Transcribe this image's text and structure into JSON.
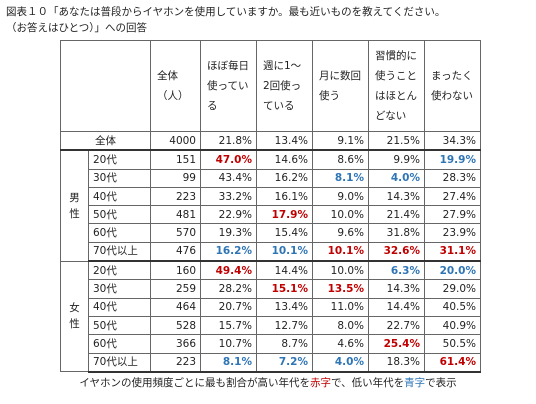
{
  "title": [
    "図表１０「あなたは普段からイヤホンを使用していますか。最も近いものを教えてください。",
    "（お答えはひとつ）」への回答"
  ],
  "table": {
    "headers": [
      "全体（人）",
      "ほぼ毎日使っている",
      "週に1～2回使っている",
      "月に数回使う",
      "習慣的に使うことはほとんどない",
      "まったく使わない"
    ],
    "total": {
      "label": "全体",
      "cells": [
        "4000",
        "21.8%",
        "13.4%",
        "9.1%",
        "21.5%",
        "34.3%"
      ]
    },
    "groups": [
      {
        "label": "男性",
        "rows": [
          {
            "age": "20代",
            "cells": [
              "151",
              "47.0%",
              "14.6%",
              "8.6%",
              "9.9%",
              "19.9%"
            ],
            "colors": [
              null,
              "#c00000",
              null,
              null,
              null,
              "#2e75b6"
            ]
          },
          {
            "age": "30代",
            "cells": [
              "99",
              "43.4%",
              "16.2%",
              "8.1%",
              "4.0%",
              "28.3%"
            ],
            "colors": [
              null,
              null,
              null,
              "#2e75b6",
              "#2e75b6",
              null
            ]
          },
          {
            "age": "40代",
            "cells": [
              "223",
              "33.2%",
              "16.1%",
              "9.0%",
              "14.3%",
              "27.4%"
            ],
            "colors": [
              null,
              null,
              null,
              null,
              null,
              null
            ]
          },
          {
            "age": "50代",
            "cells": [
              "481",
              "22.9%",
              "17.9%",
              "10.0%",
              "21.4%",
              "27.9%"
            ],
            "colors": [
              null,
              null,
              "#c00000",
              null,
              null,
              null
            ]
          },
          {
            "age": "60代",
            "cells": [
              "570",
              "19.3%",
              "15.4%",
              "9.6%",
              "31.8%",
              "23.9%"
            ],
            "colors": [
              null,
              null,
              null,
              null,
              null,
              null
            ]
          },
          {
            "age": "70代以上",
            "cells": [
              "476",
              "16.2%",
              "10.1%",
              "10.1%",
              "32.6%",
              "31.1%"
            ],
            "colors": [
              null,
              "#2e75b6",
              "#2e75b6",
              "#c00000",
              "#c00000",
              "#c00000"
            ]
          }
        ]
      },
      {
        "label": "女性",
        "rows": [
          {
            "age": "20代",
            "cells": [
              "160",
              "49.4%",
              "14.4%",
              "10.0%",
              "6.3%",
              "20.0%"
            ],
            "colors": [
              null,
              "#c00000",
              null,
              null,
              "#2e75b6",
              "#2e75b6"
            ]
          },
          {
            "age": "30代",
            "cells": [
              "259",
              "28.2%",
              "15.1%",
              "13.5%",
              "14.3%",
              "29.0%"
            ],
            "colors": [
              null,
              null,
              "#c00000",
              "#c00000",
              null,
              null
            ]
          },
          {
            "age": "40代",
            "cells": [
              "464",
              "20.7%",
              "13.4%",
              "11.0%",
              "14.4%",
              "40.5%"
            ],
            "colors": [
              null,
              null,
              null,
              null,
              null,
              null
            ]
          },
          {
            "age": "50代",
            "cells": [
              "528",
              "15.7%",
              "12.7%",
              "8.0%",
              "22.7%",
              "40.9%"
            ],
            "colors": [
              null,
              null,
              null,
              null,
              null,
              null
            ]
          },
          {
            "age": "60代",
            "cells": [
              "366",
              "10.7%",
              "8.7%",
              "4.6%",
              "25.4%",
              "50.5%"
            ],
            "colors": [
              null,
              null,
              null,
              null,
              "#c00000",
              null
            ]
          },
          {
            "age": "70代以上",
            "cells": [
              "223",
              "8.1%",
              "7.2%",
              "4.0%",
              "18.3%",
              "61.4%"
            ],
            "colors": [
              null,
              "#2e75b6",
              "#2e75b6",
              "#2e75b6",
              null,
              "#c00000"
            ]
          }
        ]
      }
    ]
  },
  "note": [
    {
      "text": "イヤホンの使用頻度ごとに最も割合が高い年代を"
    },
    {
      "text": "赤字",
      "color": "#c00000"
    },
    {
      "text": "で、低い年代を"
    },
    {
      "text": "青字",
      "color": "#2e75b6"
    },
    {
      "text": "で表示"
    }
  ]
}
